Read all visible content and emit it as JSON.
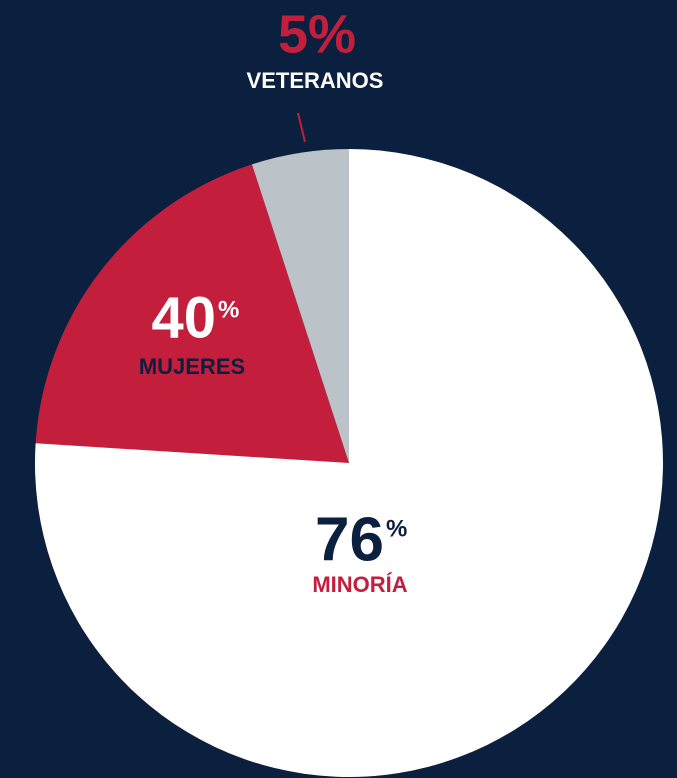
{
  "chart_data": {
    "type": "pie",
    "categories": [
      "MINORÍA",
      "MUJERES",
      "VETERANOS"
    ],
    "values": [
      76,
      40,
      5
    ],
    "unit": "%",
    "colors": [
      "#ffffff",
      "#c41e3d",
      "#bcc3c8"
    ]
  }
}
